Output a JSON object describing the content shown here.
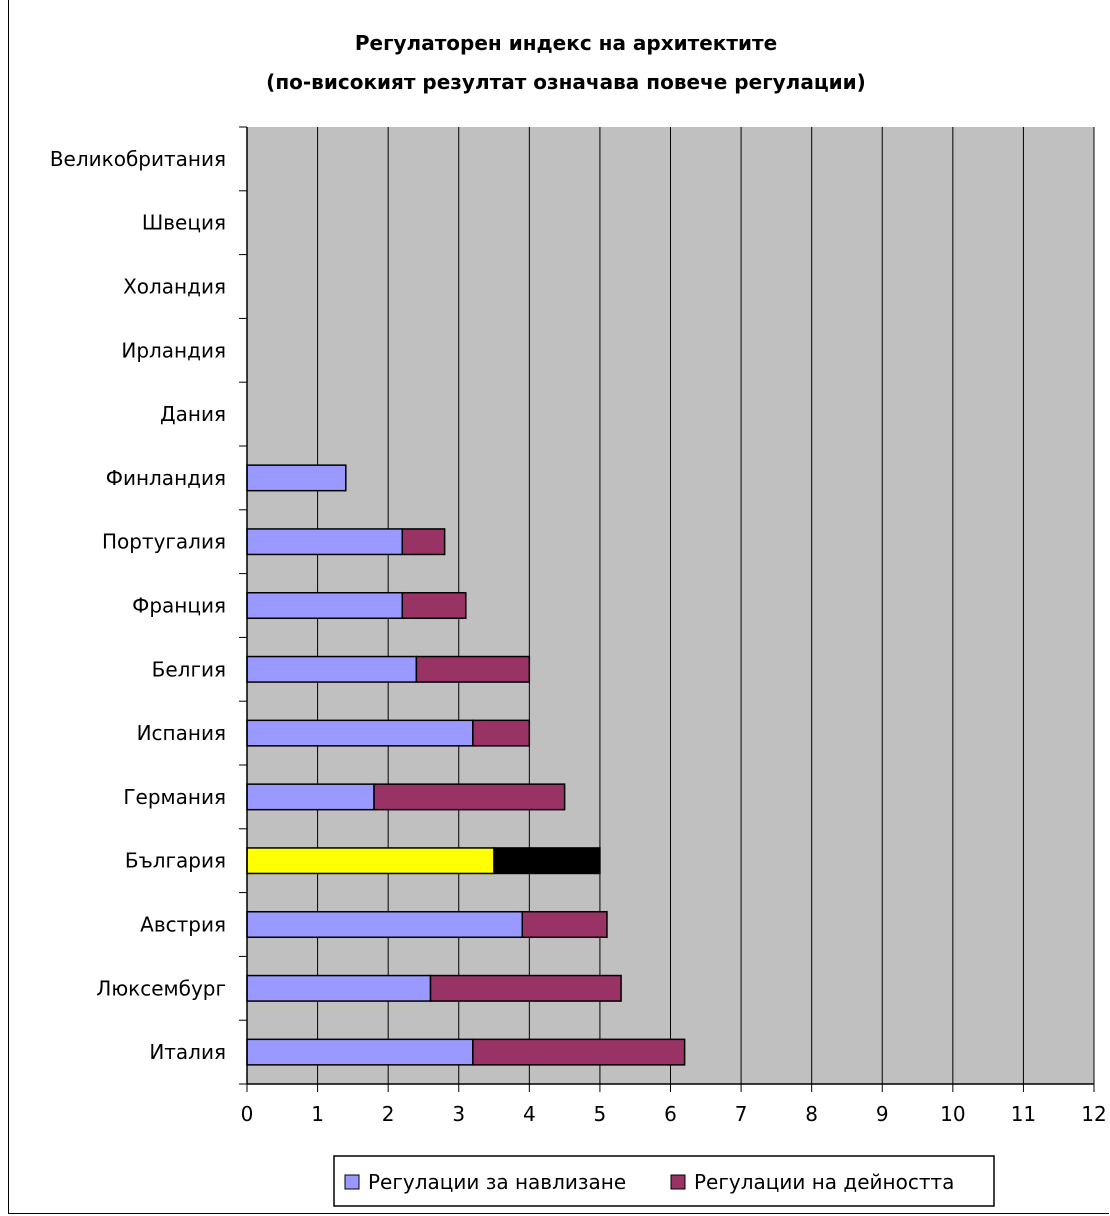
{
  "chart_data": {
    "type": "bar",
    "orientation": "horizontal",
    "stacked": true,
    "title": "Регулаторен индекс на архитектите",
    "subtitle": "(по-високият резултат означава повече регулации)",
    "categories": [
      "Великобритания",
      "Швеция",
      "Холандия",
      "Ирландия",
      "Дания",
      "Финландия",
      "Португалия",
      "Франция",
      "Белгия",
      "Испания",
      "Германия",
      "България",
      "Австрия",
      "Люксембург",
      "Италия"
    ],
    "series": [
      {
        "name": "Регулации за навлизане",
        "color": "#9999ff",
        "values": [
          0,
          0,
          0,
          0,
          0,
          1.4,
          2.2,
          2.2,
          2.4,
          3.2,
          1.8,
          3.5,
          3.9,
          2.6,
          3.2
        ]
      },
      {
        "name": "Регулации на дейността",
        "color": "#993366",
        "values": [
          0,
          0,
          0,
          0,
          0,
          0,
          0.6,
          0.9,
          1.6,
          0.8,
          2.7,
          1.5,
          1.2,
          2.7,
          3.0
        ]
      }
    ],
    "highlight": {
      "category": "България",
      "colors": [
        "#ffff00",
        "#000000"
      ]
    },
    "xlim": [
      0,
      12
    ],
    "xticks": [
      "0",
      "1",
      "2",
      "3",
      "4",
      "5",
      "6",
      "7",
      "8",
      "9",
      "10",
      "11",
      "12"
    ],
    "plot_background": "#c0c0c0",
    "grid": true,
    "legend_position": "bottom"
  }
}
